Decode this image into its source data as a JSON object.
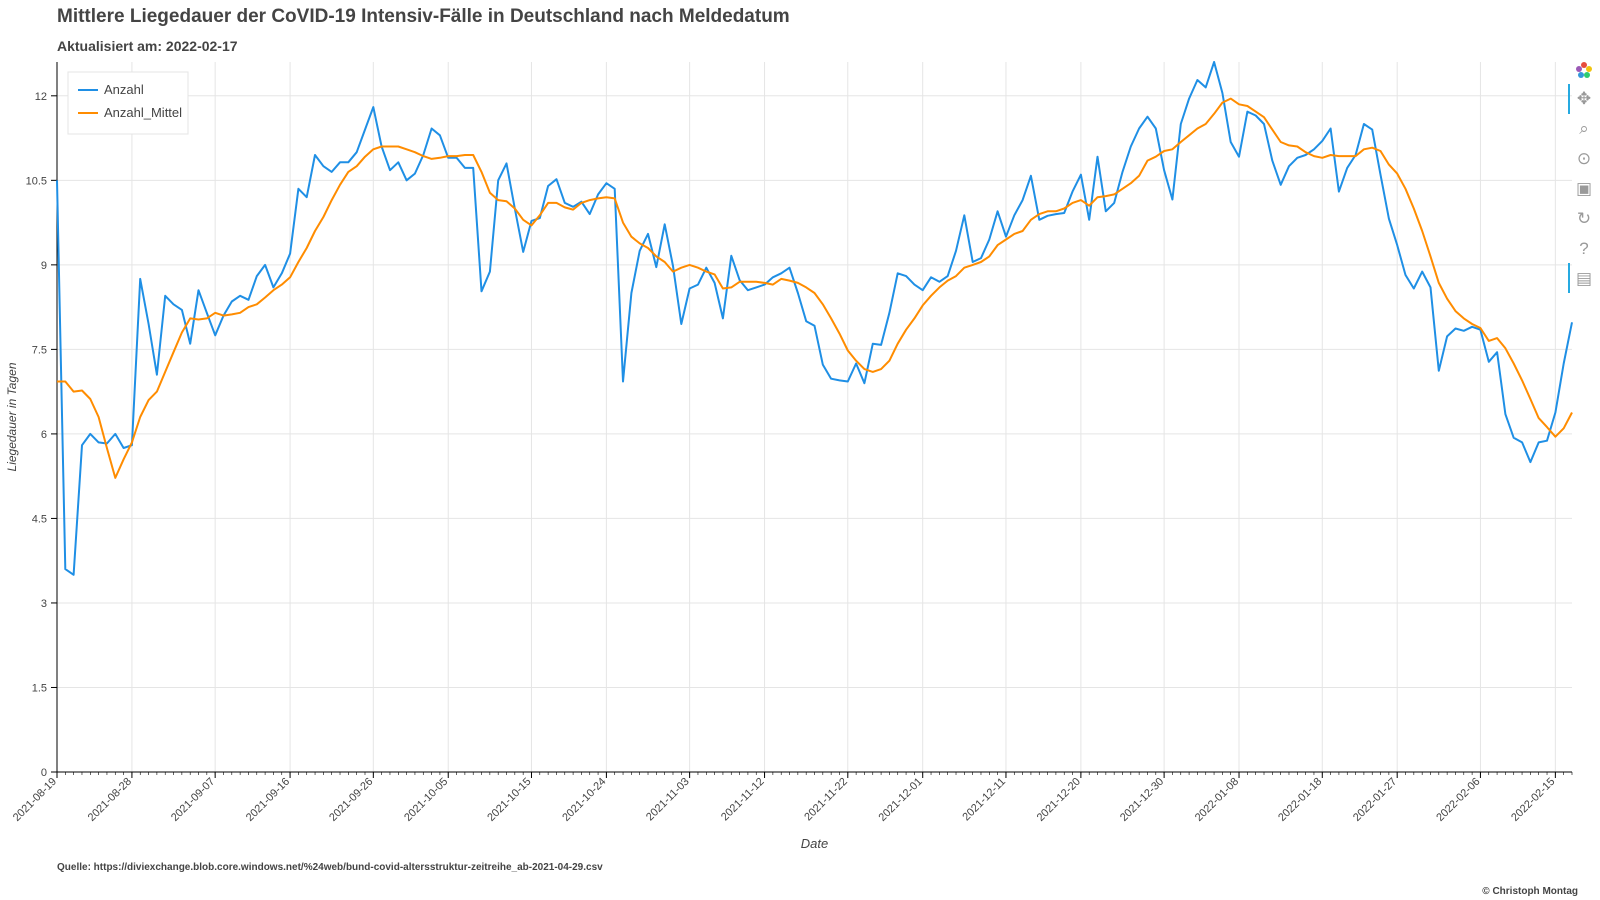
{
  "header": {
    "title": "Mittlere Liegedauer der CoVID-19 Intensiv-Fälle in Deutschland nach Meldedatum",
    "subtitle": "Aktualisiert am: 2022-02-17"
  },
  "footer": {
    "source": "Quelle: https://diviexchange.blob.core.windows.net/%24web/bund-covid-altersstruktur-zeitreihe_ab-2021-04-29.csv",
    "copyright": "© Christoph Montag"
  },
  "toolbar": {
    "icons": [
      "bokeh-logo-icon",
      "pan-icon",
      "box-zoom-icon",
      "wheel-zoom-icon",
      "save-icon",
      "reset-icon",
      "help-icon",
      "hover-icon"
    ]
  },
  "chart_data": {
    "type": "line",
    "title": "Mittlere Liegedauer der CoVID-19 Intensiv-Fälle in Deutschland nach Meldedatum",
    "subtitle": "Aktualisiert am: 2022-02-17",
    "xlabel": "Date",
    "ylabel": "Liegedauer in Tagen",
    "x_start": "2021-08-19",
    "x_end": "2022-02-17",
    "ylim": [
      0,
      12.6
    ],
    "y_ticks": [
      0,
      1.5,
      3,
      4.5,
      6,
      7.5,
      9,
      10.5,
      12
    ],
    "y_tick_labels": [
      "0",
      "1.5",
      "3",
      "4.5",
      "6",
      "7.5",
      "9",
      "10.5",
      "12"
    ],
    "x_ticks": [
      "2021-08-19",
      "2021-08-28",
      "2021-09-07",
      "2021-09-16",
      "2021-09-26",
      "2021-10-05",
      "2021-10-15",
      "2021-10-24",
      "2021-11-03",
      "2021-11-12",
      "2021-11-22",
      "2021-12-01",
      "2021-12-11",
      "2021-12-20",
      "2021-12-30",
      "2022-01-08",
      "2022-01-18",
      "2022-01-27",
      "2022-02-06",
      "2022-02-15"
    ],
    "grid": true,
    "legend_position": "top-left",
    "series": [
      {
        "name": "Anzahl",
        "color": "#1f8fe5",
        "values": [
          10.5,
          3.6,
          3.5,
          5.8,
          6.0,
          5.85,
          5.83,
          6.0,
          5.75,
          5.8,
          8.75,
          7.95,
          7.05,
          8.45,
          8.3,
          8.2,
          7.6,
          8.55,
          8.15,
          7.75,
          8.1,
          8.35,
          8.45,
          8.38,
          8.8,
          9.0,
          8.6,
          8.85,
          9.2,
          10.35,
          10.2,
          10.95,
          10.75,
          10.65,
          10.82,
          10.82,
          11.0,
          11.4,
          11.8,
          11.1,
          10.68,
          10.82,
          10.5,
          10.62,
          10.95,
          11.42,
          11.3,
          10.9,
          10.9,
          10.72,
          10.72,
          8.53,
          8.88,
          10.5,
          10.8,
          10.0,
          9.23,
          9.78,
          9.83,
          10.4,
          10.52,
          10.1,
          10.03,
          10.12,
          9.9,
          10.25,
          10.45,
          10.35,
          6.93,
          8.5,
          9.25,
          9.55,
          8.96,
          9.72,
          8.98,
          7.95,
          8.58,
          8.65,
          8.95,
          8.68,
          8.05,
          9.16,
          8.73,
          8.55,
          8.6,
          8.65,
          8.78,
          8.85,
          8.95,
          8.5,
          8.0,
          7.92,
          7.23,
          6.98,
          6.95,
          6.93,
          7.25,
          6.9,
          7.6,
          7.58,
          8.15,
          8.85,
          8.8,
          8.65,
          8.55,
          8.78,
          8.7,
          8.8,
          9.25,
          9.88,
          9.05,
          9.12,
          9.45,
          9.95,
          9.5,
          9.88,
          10.15,
          10.58,
          9.8,
          9.87,
          9.9,
          9.92,
          10.3,
          10.6,
          9.8,
          10.92,
          9.95,
          10.1,
          10.65,
          11.1,
          11.42,
          11.63,
          11.42,
          10.68,
          10.16,
          11.5,
          11.95,
          12.28,
          12.15,
          12.6,
          12.05,
          11.18,
          10.92,
          11.72,
          11.65,
          11.5,
          10.85,
          10.42,
          10.75,
          10.9,
          10.95,
          11.05,
          11.2,
          11.42,
          10.3,
          10.72,
          10.95,
          11.5,
          11.4,
          10.6,
          9.82,
          9.35,
          8.82,
          8.58,
          8.88,
          8.6,
          7.12,
          7.73,
          7.87,
          7.83,
          7.9,
          7.85,
          7.28,
          7.45,
          6.35,
          5.93,
          5.85,
          5.5,
          5.85,
          5.88,
          6.38,
          7.25,
          7.98
        ]
      },
      {
        "name": "Anzahl_Mittel",
        "color": "#ff8c00",
        "values": [
          6.93,
          6.93,
          6.75,
          6.77,
          6.62,
          6.3,
          5.75,
          5.22,
          5.55,
          5.85,
          6.3,
          6.6,
          6.75,
          7.1,
          7.45,
          7.8,
          8.05,
          8.03,
          8.05,
          8.15,
          8.1,
          8.12,
          8.15,
          8.25,
          8.3,
          8.42,
          8.55,
          8.65,
          8.78,
          9.05,
          9.3,
          9.6,
          9.85,
          10.15,
          10.42,
          10.65,
          10.75,
          10.92,
          11.05,
          11.1,
          11.1,
          11.1,
          11.05,
          11.0,
          10.93,
          10.88,
          10.9,
          10.93,
          10.93,
          10.95,
          10.95,
          10.65,
          10.28,
          10.15,
          10.13,
          10.0,
          9.8,
          9.7,
          9.88,
          10.1,
          10.1,
          10.02,
          9.98,
          10.1,
          10.15,
          10.18,
          10.2,
          10.18,
          9.75,
          9.5,
          9.38,
          9.3,
          9.15,
          9.05,
          8.88,
          8.95,
          9.0,
          8.95,
          8.88,
          8.83,
          8.58,
          8.6,
          8.7,
          8.7,
          8.7,
          8.68,
          8.65,
          8.75,
          8.72,
          8.68,
          8.6,
          8.5,
          8.3,
          8.05,
          7.78,
          7.48,
          7.3,
          7.15,
          7.1,
          7.15,
          7.3,
          7.6,
          7.85,
          8.05,
          8.28,
          8.45,
          8.6,
          8.72,
          8.8,
          8.95,
          9.0,
          9.05,
          9.15,
          9.35,
          9.45,
          9.55,
          9.6,
          9.8,
          9.9,
          9.95,
          9.95,
          10.0,
          10.1,
          10.15,
          10.05,
          10.2,
          10.22,
          10.25,
          10.35,
          10.45,
          10.58,
          10.85,
          10.92,
          11.02,
          11.05,
          11.18,
          11.3,
          11.42,
          11.5,
          11.68,
          11.88,
          11.95,
          11.85,
          11.82,
          11.72,
          11.62,
          11.4,
          11.18,
          11.12,
          11.1,
          11.0,
          10.93,
          10.9,
          10.95,
          10.93,
          10.93,
          10.93,
          11.05,
          11.08,
          11.02,
          10.78,
          10.62,
          10.35,
          10.0,
          9.6,
          9.15,
          8.68,
          8.4,
          8.18,
          8.05,
          7.95,
          7.88,
          7.65,
          7.7,
          7.52,
          7.25,
          6.95,
          6.62,
          6.28,
          6.12,
          5.95,
          6.1,
          6.38
        ]
      }
    ]
  }
}
